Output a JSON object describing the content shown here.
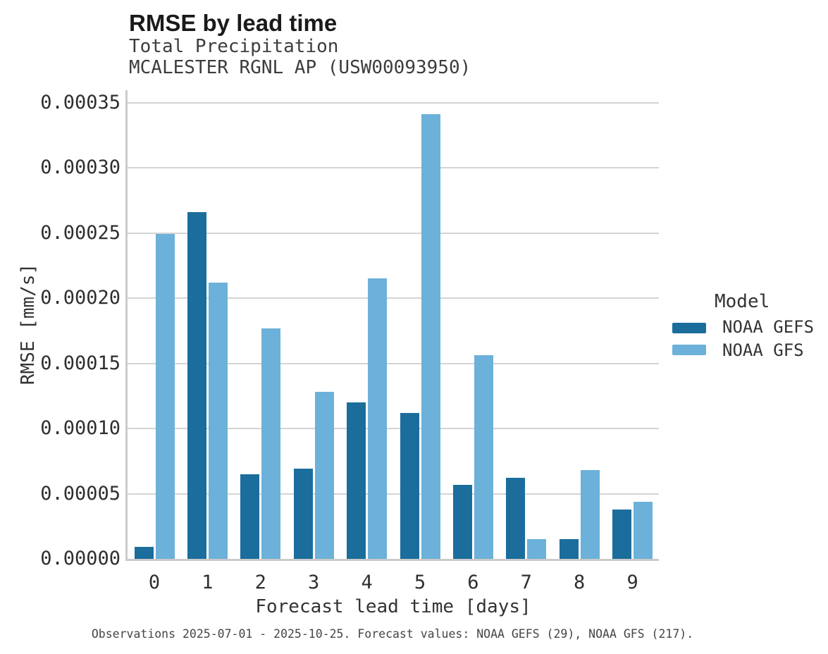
{
  "header": {
    "title": "RMSE by lead time",
    "subtitle_line1": "Total Precipitation",
    "subtitle_line2": "MCALESTER RGNL AP (USW00093950)"
  },
  "legend": {
    "title": "Model",
    "entries": [
      {
        "label": "NOAA GEFS",
        "color": "#1b6d9c"
      },
      {
        "label": "NOAA GFS",
        "color": "#6cb1d9"
      }
    ]
  },
  "footer": {
    "text": "Observations 2025-07-01 - 2025-10-25. Forecast values: NOAA GEFS (29), NOAA GFS (217)."
  },
  "colors": {
    "gefs_bar": "#1b6d9c",
    "gfs_bar": "#6cb1d9",
    "gridline": "#d4d4d4",
    "axis_spine": "#cbcbcb"
  },
  "chart_data": {
    "type": "bar",
    "title": "RMSE by lead time",
    "subtitle": [
      "Total Precipitation",
      "MCALESTER RGNL AP (USW00093950)"
    ],
    "xlabel": "Forecast lead time [days]",
    "ylabel": "RMSE [mm/s]",
    "ylim": [
      0,
      0.00035
    ],
    "grid": true,
    "legend_title": "Model",
    "legend_position": "right",
    "categories": [
      "0",
      "1",
      "2",
      "3",
      "4",
      "5",
      "6",
      "7",
      "8",
      "9"
    ],
    "ytick_labels": [
      "0.00000",
      "0.00005",
      "0.00010",
      "0.00015",
      "0.00020",
      "0.00025",
      "0.00030",
      "0.00035"
    ],
    "series": [
      {
        "name": "NOAA GEFS",
        "color": "#1b6d9c",
        "values": [
          9e-06,
          0.000266,
          6.5e-05,
          6.9e-05,
          0.00012,
          0.000112,
          5.7e-05,
          6.2e-05,
          1.5e-05,
          3.8e-05
        ]
      },
      {
        "name": "NOAA GFS",
        "color": "#6cb1d9",
        "values": [
          0.000249,
          0.000212,
          0.000177,
          0.000128,
          0.000215,
          0.000341,
          0.000156,
          1.5e-05,
          6.8e-05,
          4.4e-05
        ]
      }
    ]
  }
}
